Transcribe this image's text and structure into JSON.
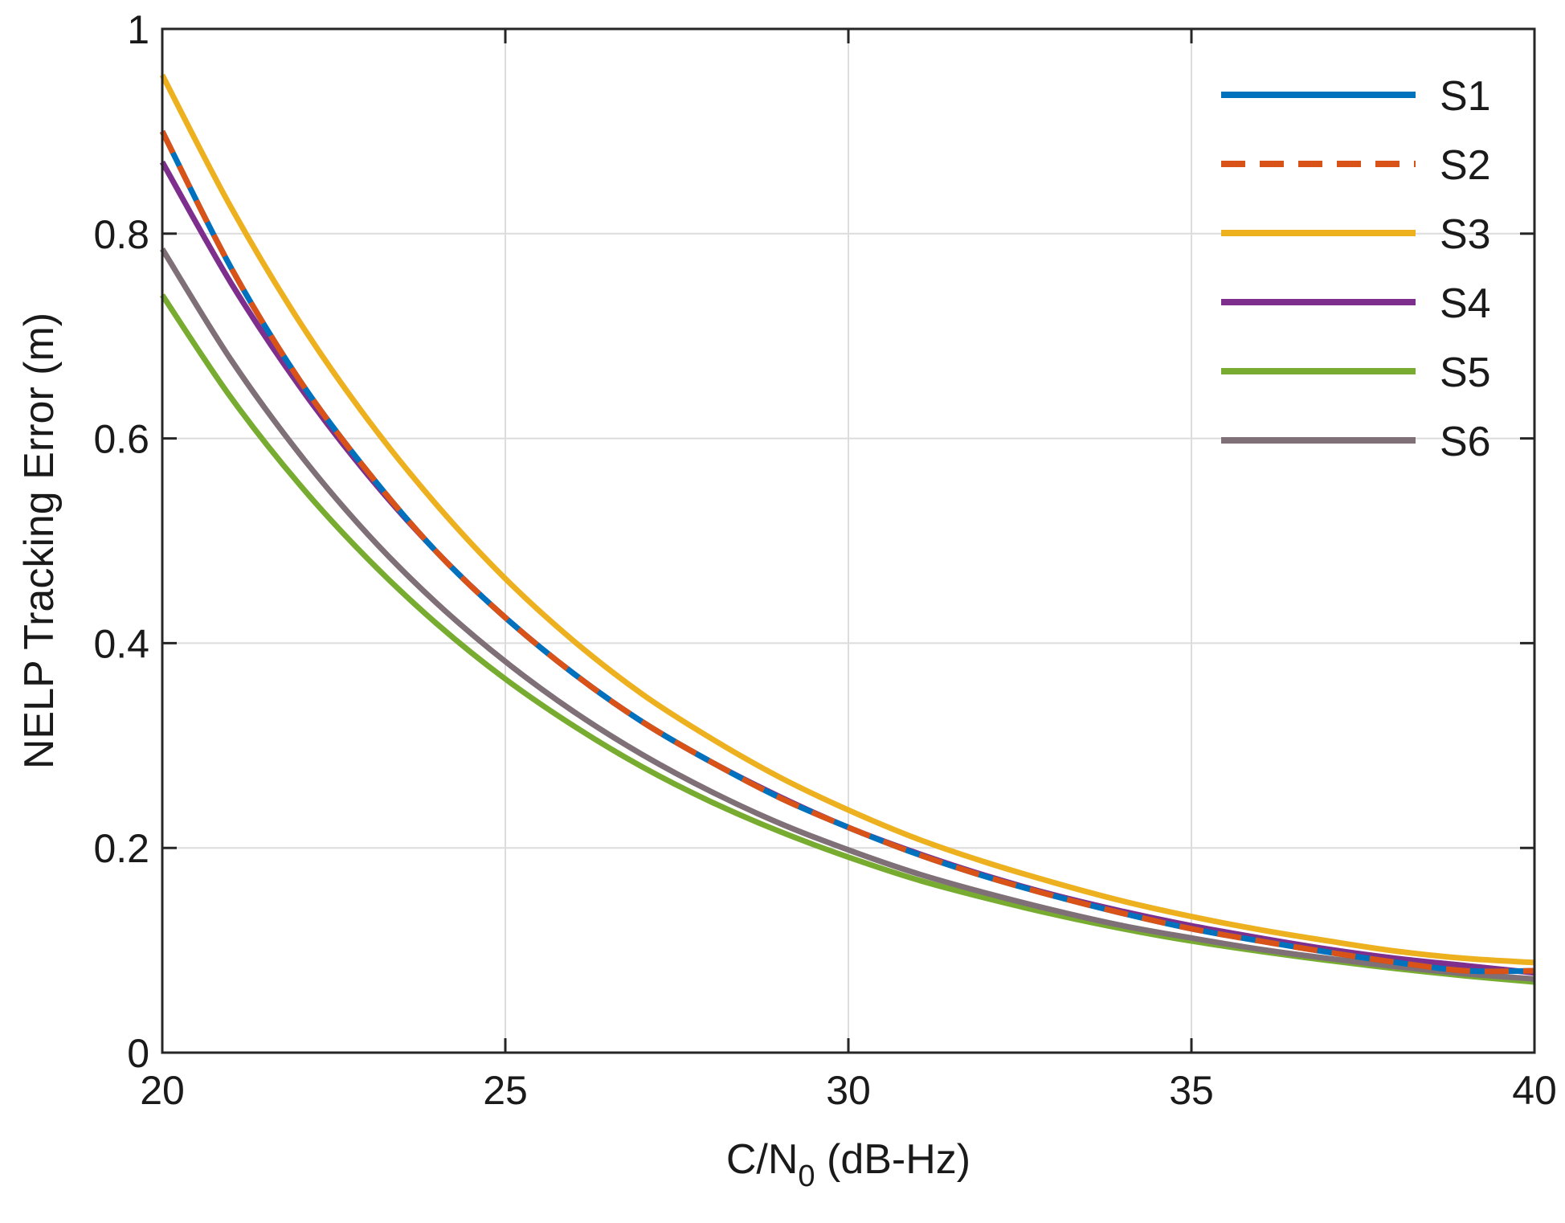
{
  "chart_data": {
    "type": "line",
    "title": "",
    "xlabel": "C/N",
    "xlabel_subscript": "0",
    "xlabel_suffix": " (dB-Hz)",
    "ylabel": "NELP Tracking Error (m)",
    "xlim": [
      20,
      40
    ],
    "ylim": [
      0,
      1
    ],
    "xticks": [
      20,
      25,
      30,
      35,
      40
    ],
    "yticks": [
      0,
      0.2,
      0.4,
      0.6,
      0.8,
      1
    ],
    "xtick_labels": [
      "20",
      "25",
      "30",
      "35",
      "40"
    ],
    "ytick_labels": [
      "0",
      "0.2",
      "0.4",
      "0.6",
      "0.8",
      "1"
    ],
    "grid": true,
    "legend_position": "top-right",
    "x": [
      20,
      21,
      22,
      23,
      24,
      25,
      26,
      27,
      28,
      29,
      30,
      31,
      32,
      33,
      34,
      35,
      36,
      37,
      38,
      39,
      40
    ],
    "series": [
      {
        "name": "S1",
        "color": "#0072BD",
        "dash": "solid",
        "values": [
          0.9,
          0.767,
          0.657,
          0.567,
          0.489,
          0.425,
          0.37,
          0.323,
          0.284,
          0.249,
          0.22,
          0.194,
          0.172,
          0.153,
          0.136,
          0.121,
          0.109,
          0.098,
          0.088,
          0.08,
          0.08
        ]
      },
      {
        "name": "S2",
        "color": "#D95319",
        "dash": "dashed",
        "values": [
          0.9,
          0.767,
          0.657,
          0.567,
          0.489,
          0.425,
          0.37,
          0.323,
          0.284,
          0.249,
          0.22,
          0.194,
          0.172,
          0.153,
          0.136,
          0.121,
          0.109,
          0.098,
          0.088,
          0.08,
          0.08
        ]
      },
      {
        "name": "S3",
        "color": "#EDB120",
        "dash": "solid",
        "values": [
          0.955,
          0.826,
          0.714,
          0.618,
          0.535,
          0.463,
          0.402,
          0.35,
          0.307,
          0.269,
          0.237,
          0.209,
          0.186,
          0.166,
          0.148,
          0.133,
          0.12,
          0.109,
          0.099,
          0.092,
          0.088
        ]
      },
      {
        "name": "S4",
        "color": "#7E2F8E",
        "dash": "solid",
        "values": [
          0.87,
          0.752,
          0.651,
          0.564,
          0.489,
          0.425,
          0.37,
          0.323,
          0.284,
          0.25,
          0.22,
          0.195,
          0.173,
          0.154,
          0.138,
          0.124,
          0.112,
          0.101,
          0.092,
          0.085,
          0.078
        ]
      },
      {
        "name": "S5",
        "color": "#77AC30",
        "dash": "solid",
        "values": [
          0.74,
          0.64,
          0.555,
          0.482,
          0.419,
          0.365,
          0.319,
          0.279,
          0.245,
          0.216,
          0.191,
          0.169,
          0.151,
          0.135,
          0.121,
          0.109,
          0.099,
          0.09,
          0.082,
          0.075,
          0.069
        ]
      },
      {
        "name": "S6",
        "color": "#7F7077",
        "dash": "solid",
        "values": [
          0.785,
          0.677,
          0.585,
          0.506,
          0.439,
          0.382,
          0.333,
          0.291,
          0.255,
          0.224,
          0.198,
          0.175,
          0.156,
          0.139,
          0.124,
          0.112,
          0.101,
          0.092,
          0.084,
          0.077,
          0.072
        ]
      }
    ]
  }
}
